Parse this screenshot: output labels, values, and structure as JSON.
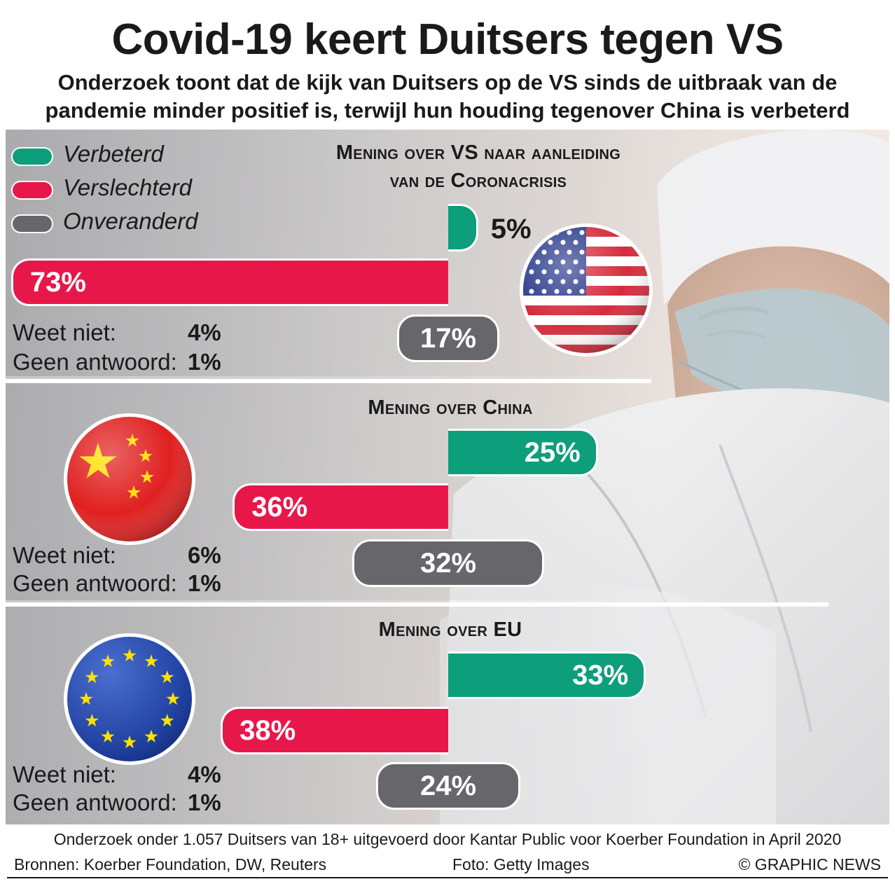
{
  "header": {
    "title": "Covid-19 keert Duitsers tegen VS",
    "subtitle_line1": "Onderzoek toont dat de kijk van Duitsers op de VS sinds de uitbraak van de",
    "subtitle_line2": "pandemie minder positief is, terwijl hun houding tegenover China is verbeterd"
  },
  "legend": [
    {
      "label": "Verbeterd",
      "color": "#0d9e7c"
    },
    {
      "label": "Verslechterd",
      "color": "#e8174a"
    },
    {
      "label": "Onveranderd",
      "color": "#66666b"
    }
  ],
  "chart_data": [
    {
      "type": "bar",
      "title_line1": "Mening over VS naar aanleiding",
      "title_line2": "van de Coronacrisis",
      "flag": "usa-flag",
      "categories": [
        "Verbeterd",
        "Verslechterd",
        "Onveranderd"
      ],
      "values": [
        5,
        73,
        17
      ],
      "labels": [
        "5%",
        "73%",
        "17%"
      ],
      "weet_niet_label": "Weet niet:",
      "weet_niet": "4%",
      "geen_antwoord_label": "Geen antwoord:",
      "geen_antwoord": "1%"
    },
    {
      "type": "bar",
      "title_line1": "Mening over China",
      "title_line2": "",
      "flag": "china-flag",
      "categories": [
        "Verbeterd",
        "Verslechterd",
        "Onveranderd"
      ],
      "values": [
        25,
        36,
        32
      ],
      "labels": [
        "25%",
        "36%",
        "32%"
      ],
      "weet_niet_label": "Weet niet:",
      "weet_niet": "6%",
      "geen_antwoord_label": "Geen antwoord:",
      "geen_antwoord": "1%"
    },
    {
      "type": "bar",
      "title_line1": "Mening over EU",
      "title_line2": "",
      "flag": "eu-flag",
      "categories": [
        "Verbeterd",
        "Verslechterd",
        "Onveranderd"
      ],
      "values": [
        33,
        38,
        24
      ],
      "labels": [
        "33%",
        "38%",
        "24%"
      ],
      "weet_niet_label": "Weet niet:",
      "weet_niet": "4%",
      "geen_antwoord_label": "Geen antwoord:",
      "geen_antwoord": "1%"
    }
  ],
  "footer": {
    "note": "Onderzoek onder 1.057 Duitsers van 18+ uitgevoerd door Kantar Public voor Koerber Foundation in April 2020",
    "sources": "Bronnen: Koerber Foundation, DW, Reuters",
    "photo": "Foto: Getty Images",
    "credit": "© GRAPHIC NEWS"
  }
}
